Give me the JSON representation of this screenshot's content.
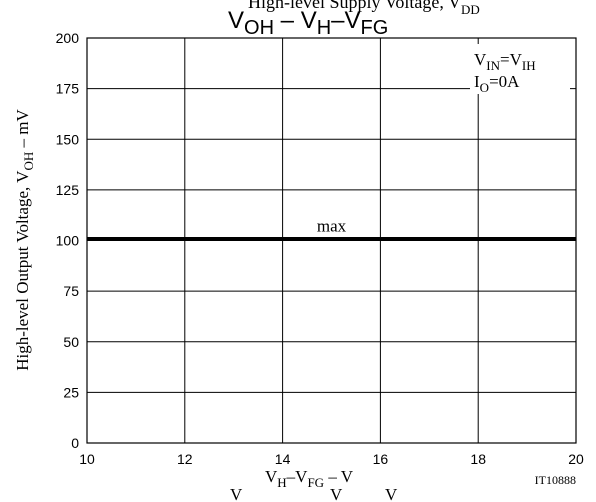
{
  "chart_data": {
    "type": "line",
    "title": {
      "top_partial": "High-level Supply Voltage, V",
      "top_partial_sub": "DD",
      "main_a": "V",
      "main_a_sub": "OH",
      "main_dash": " – ",
      "main_b": "V",
      "main_b_sub": "H",
      "main_c": "–V",
      "main_c_sub": "FG"
    },
    "ylabel": {
      "prefix": "High-level Output Voltage, V",
      "sub": "OH",
      "suffix": "  –  mV"
    },
    "xlabel": {
      "a": "V",
      "a_sub": "H",
      "b": "–V",
      "b_sub": "FG",
      "c": "  –  V"
    },
    "bottom_partial": {
      "a": "V",
      "b": "V",
      "c": "V"
    },
    "legend": {
      "line1_a": "V",
      "line1_a_sub": "IN",
      "line1_b": "=V",
      "line1_b_sub": "IH",
      "line2_a": "I",
      "line2_a_sub": "O",
      "line2_b": "=0A"
    },
    "xlim": [
      10,
      20
    ],
    "ylim": [
      0,
      200
    ],
    "x_ticks": [
      10,
      12,
      14,
      16,
      18,
      20
    ],
    "y_ticks": [
      0,
      25,
      50,
      75,
      100,
      125,
      150,
      175,
      200
    ],
    "grid": true,
    "series": [
      {
        "name": "max",
        "x": [
          10,
          20
        ],
        "y": [
          101,
          101
        ]
      }
    ],
    "figure_id": "IT10888"
  }
}
